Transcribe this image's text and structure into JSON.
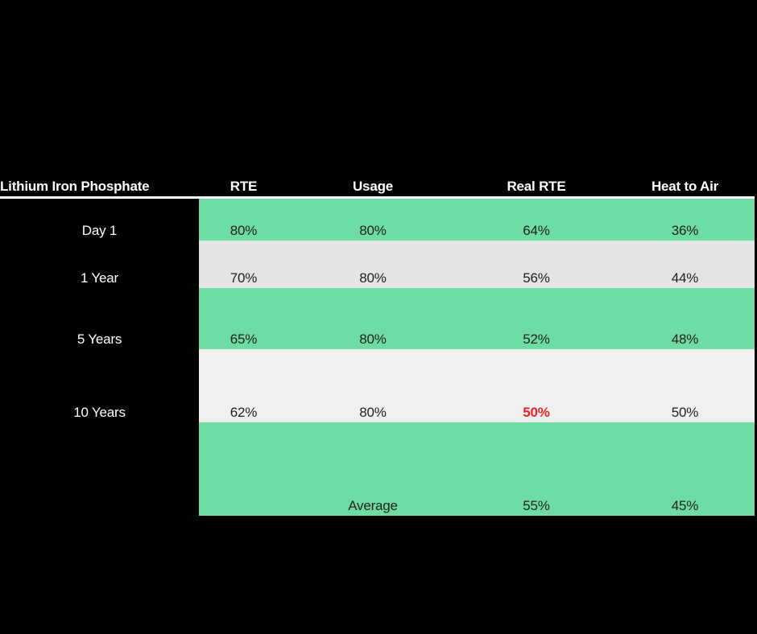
{
  "title": "Lithium Iron Phosphate",
  "table": {
    "corner_label": "Lithium Iron Phosphate",
    "column_headers": [
      "RTE",
      "Usage",
      "Real RTE",
      "Heat to Air"
    ],
    "rows": [
      {
        "label": "Day 1",
        "rte": "80%",
        "usage": "80%",
        "real_rte": "64%",
        "heat_to_air": "36%"
      },
      {
        "label": "1 Year",
        "rte": "70%",
        "usage": "80%",
        "real_rte": "56%",
        "heat_to_air": "44%"
      },
      {
        "label": "5 Years",
        "rte": "65%",
        "usage": "80%",
        "real_rte": "52%",
        "heat_to_air": "48%"
      },
      {
        "label": "10 Years",
        "rte": "62%",
        "usage": "80%",
        "real_rte": "50%",
        "heat_to_air": "50%"
      },
      {
        "label": "",
        "rte": "",
        "usage": "Average",
        "real_rte": "55%",
        "heat_to_air": "45%"
      }
    ]
  },
  "colors": {
    "background": "#000000",
    "band_green": "#6edda4",
    "band_gray": "#e4e4e4",
    "band_light": "#eff0ef",
    "header_text": "#ffffff",
    "value_text": "#1f1f1f",
    "highlight_red": "#ee2222",
    "header_underline": "#ffffff"
  },
  "chart_data": {
    "type": "table",
    "title": "Lithium Iron Phosphate",
    "columns": [
      "Lithium Iron Phosphate",
      "RTE",
      "Usage",
      "Real RTE",
      "Heat to Air"
    ],
    "rows": [
      [
        "Day 1",
        "80%",
        "80%",
        "64%",
        "36%"
      ],
      [
        "1 Year",
        "70%",
        "80%",
        "56%",
        "44%"
      ],
      [
        "5 Years",
        "65%",
        "80%",
        "52%",
        "48%"
      ],
      [
        "10 Years",
        "62%",
        "80%",
        "50%",
        "50%"
      ],
      [
        "",
        "",
        "Average",
        "55%",
        "45%"
      ]
    ],
    "layout_hints": {
      "background": "black",
      "row_band_colors": [
        "green",
        "gray",
        "green",
        "light-gray",
        "green"
      ],
      "highlighted_cell": {
        "row": "10 Years",
        "column": "Real RTE",
        "style": "bold red"
      },
      "header": "white bold text with full-width white underline",
      "label_column": "black background, white text, centered"
    }
  }
}
